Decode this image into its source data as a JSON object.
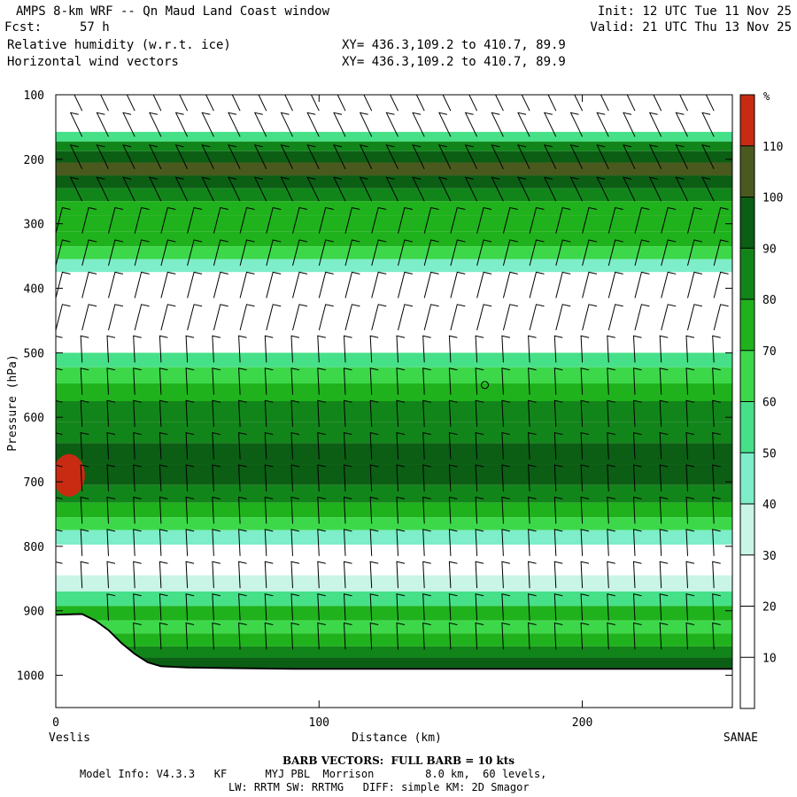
{
  "header": {
    "title": "AMPS 8-km WRF -- Qn Maud Land Coast window",
    "forecast_label": "Fcst:",
    "forecast_hours": "57 h",
    "field1": "Relative humidity (w.r.t. ice)",
    "field2": "Horizontal wind vectors",
    "xy1": "XY= 436.3,109.2 to 410.7, 89.9",
    "xy2": "XY= 436.3,109.2 to 410.7, 89.9",
    "init": "Init: 12 UTC Tue 11 Nov 25",
    "valid": "Valid: 21 UTC Thu 13 Nov 25"
  },
  "chart_data": {
    "type": "heatmap",
    "title": "Relative humidity (w.r.t. ice)",
    "overlay": "Horizontal wind vectors",
    "xlabel": "Distance (km)",
    "ylabel": "Pressure (hPa)",
    "xlim": [
      0,
      257
    ],
    "ylim": [
      1050,
      100
    ],
    "x_ticks": [
      "0",
      "100",
      "200"
    ],
    "y_ticks": [
      "100",
      "200",
      "300",
      "400",
      "500",
      "600",
      "700",
      "800",
      "900",
      "1000"
    ],
    "left_endpoint": "Veslis",
    "right_endpoint": "SANAE",
    "colorbar": {
      "unit": "%",
      "levels": [
        "10",
        "20",
        "30",
        "40",
        "50",
        "60",
        "70",
        "80",
        "90",
        "100",
        "110"
      ],
      "colors": [
        "#ffffff",
        "#ffffff",
        "#ffffff",
        "#c8f5e6",
        "#7deec9",
        "#46e089",
        "#3cd84a",
        "#1fb21c",
        "#12851a",
        "#0b5e14",
        "#4a5a1e",
        "#c82b12"
      ]
    },
    "rh_profile": [
      {
        "p": 100,
        "rh": 10
      },
      {
        "p": 120,
        "rh": 10
      },
      {
        "p": 150,
        "rh": 20
      },
      {
        "p": 165,
        "rh": 50
      },
      {
        "p": 180,
        "rh": 80
      },
      {
        "p": 195,
        "rh": 95
      },
      {
        "p": 215,
        "rh": 105
      },
      {
        "p": 235,
        "rh": 98
      },
      {
        "p": 255,
        "rh": 85
      },
      {
        "p": 275,
        "rh": 75
      },
      {
        "p": 300,
        "rh": 70
      },
      {
        "p": 325,
        "rh": 78
      },
      {
        "p": 345,
        "rh": 65
      },
      {
        "p": 365,
        "rh": 45
      },
      {
        "p": 385,
        "rh": 25
      },
      {
        "p": 420,
        "rh": 12
      },
      {
        "p": 460,
        "rh": 12
      },
      {
        "p": 490,
        "rh": 28
      },
      {
        "p": 510,
        "rh": 50
      },
      {
        "p": 535,
        "rh": 65
      },
      {
        "p": 560,
        "rh": 78
      },
      {
        "p": 590,
        "rh": 85
      },
      {
        "p": 625,
        "rh": 88
      },
      {
        "p": 655,
        "rh": 92
      },
      {
        "p": 690,
        "rh": 95
      },
      {
        "p": 720,
        "rh": 88
      },
      {
        "p": 745,
        "rh": 78
      },
      {
        "p": 765,
        "rh": 62
      },
      {
        "p": 785,
        "rh": 40
      },
      {
        "p": 810,
        "rh": 20
      },
      {
        "p": 830,
        "rh": 12
      },
      {
        "p": 860,
        "rh": 30
      },
      {
        "p": 880,
        "rh": 58
      },
      {
        "p": 905,
        "rh": 72
      },
      {
        "p": 925,
        "rh": 60
      },
      {
        "p": 945,
        "rh": 78
      },
      {
        "p": 965,
        "rh": 85
      },
      {
        "p": 980,
        "rh": 92
      },
      {
        "p": 995,
        "rh": 90
      }
    ],
    "saturation_maximum": {
      "x": 5,
      "p": 690,
      "rh": 112
    },
    "terrain_pressure": [
      {
        "x": 0,
        "p": 906
      },
      {
        "x": 10,
        "p": 905
      },
      {
        "x": 15,
        "p": 915
      },
      {
        "x": 20,
        "p": 930
      },
      {
        "x": 25,
        "p": 950
      },
      {
        "x": 30,
        "p": 967
      },
      {
        "x": 35,
        "p": 980
      },
      {
        "x": 40,
        "p": 986
      },
      {
        "x": 50,
        "p": 988
      },
      {
        "x": 90,
        "p": 990
      },
      {
        "x": 257,
        "p": 990
      }
    ],
    "barb_x_km": [
      0,
      10,
      20,
      30,
      40,
      50,
      60,
      70,
      80,
      90,
      100,
      110,
      120,
      130,
      140,
      150,
      160,
      170,
      180,
      190,
      200,
      210,
      220,
      230,
      240,
      250
    ],
    "barb_levels_hpa": [
      125,
      165,
      215,
      265,
      315,
      365,
      415,
      465,
      515,
      565,
      615,
      665,
      715,
      765,
      815,
      865,
      915,
      960
    ],
    "calm_marker": {
      "x": 163,
      "p": 550
    }
  },
  "footer": {
    "barb_note": "BARB VECTORS:  FULL BARB = 10 kts",
    "model_line1": "Model Info: V4.3.3   KF      MYJ PBL  Morrison        8.0 km,  60 levels,",
    "model_line2": "LW: RRTM SW: RRTMG   DIFF: simple KM: 2D Smagor"
  },
  "colors": {
    "terrain_line": "#000000",
    "barb": "#000000",
    "frame": "#000000"
  }
}
